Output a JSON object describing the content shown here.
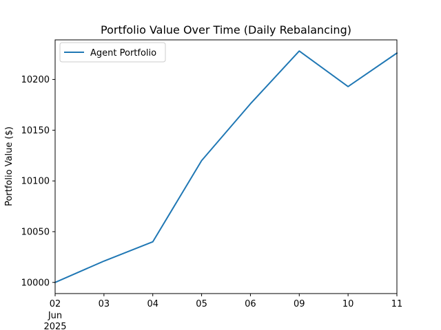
{
  "chart_data": {
    "type": "line",
    "title": "Portfolio Value Over Time (Daily Rebalancing)",
    "xlabel": "",
    "ylabel": "Portfolio Value ($)",
    "x_tick_labels": [
      "02",
      "03",
      "04",
      "05",
      "06",
      "09",
      "10",
      "11"
    ],
    "x_dates": [
      "2025-06-02",
      "2025-06-03",
      "2025-06-04",
      "2025-06-05",
      "2025-06-06",
      "2025-06-09",
      "2025-06-10",
      "2025-06-11"
    ],
    "x_secondary_label": {
      "month": "Jun",
      "year": "2025"
    },
    "y_ticks": [
      10000,
      10050,
      10100,
      10150,
      10200
    ],
    "ylim": [
      9989,
      10239
    ],
    "grid": false,
    "legend": {
      "position": "top-left"
    },
    "series": [
      {
        "name": "Agent Portfolio",
        "color": "#1f77b4",
        "values": [
          10000,
          10021,
          10040,
          10120,
          10176,
          10228,
          10193,
          10226
        ]
      }
    ]
  }
}
